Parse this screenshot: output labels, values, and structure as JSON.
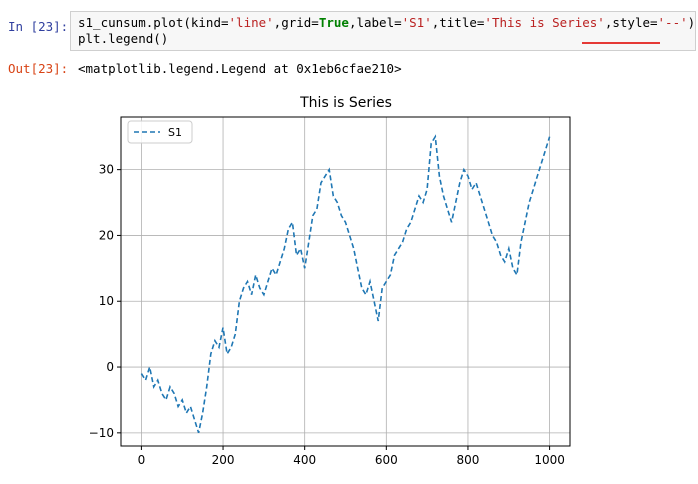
{
  "cells": {
    "input_prompt": "In  [23]:",
    "output_prompt": "Out[23]:",
    "code": {
      "line1_a": "s1_cunsum.plot(kind=",
      "kind": "'line'",
      "grid_a": ",grid=",
      "true_kw": "True",
      "label_a": ",label=",
      "label_val": "'S1'",
      "title_a": ",title=",
      "title_val": "'This is Series'",
      "style_a": ",style=",
      "style_val": "'--'",
      "close": ")",
      "line2": "plt.legend()"
    },
    "output": "<matplotlib.legend.Legend at 0x1eb6cfae210>"
  },
  "colors": {
    "line": "#1f77b4",
    "in_prompt": "#303F9F",
    "out_prompt": "#D84315",
    "string": "#BA2121",
    "keyword": "#008000",
    "underline": "#e53935"
  },
  "chart_data": {
    "type": "line",
    "title": "This is Series",
    "xlabel": "",
    "ylabel": "",
    "xlim": [
      -50,
      1050
    ],
    "ylim": [
      -12,
      38
    ],
    "grid": true,
    "line_style": "dashed",
    "legend_position": "top-left",
    "xticks": [
      0,
      200,
      400,
      600,
      800,
      1000
    ],
    "yticks": [
      -10,
      0,
      10,
      20,
      30
    ],
    "xtick_labels": [
      "0",
      "200",
      "400",
      "600",
      "800",
      "1000"
    ],
    "ytick_labels": [
      "−10",
      "0",
      "10",
      "20",
      "30"
    ],
    "series": [
      {
        "name": "S1",
        "x": [
          0,
          10,
          20,
          30,
          40,
          50,
          60,
          70,
          80,
          90,
          100,
          110,
          120,
          130,
          140,
          150,
          160,
          170,
          180,
          190,
          200,
          210,
          220,
          230,
          240,
          250,
          260,
          270,
          280,
          290,
          300,
          310,
          320,
          330,
          340,
          350,
          360,
          370,
          380,
          390,
          400,
          410,
          420,
          430,
          440,
          450,
          460,
          470,
          480,
          490,
          500,
          510,
          520,
          530,
          540,
          550,
          560,
          570,
          580,
          590,
          600,
          610,
          620,
          630,
          640,
          650,
          660,
          670,
          680,
          690,
          700,
          710,
          720,
          730,
          740,
          750,
          760,
          770,
          780,
          790,
          800,
          810,
          820,
          830,
          840,
          850,
          860,
          870,
          880,
          890,
          900,
          910,
          920,
          930,
          940,
          950,
          960,
          970,
          980,
          990,
          1000
        ],
        "values": [
          -1,
          -2,
          0,
          -3,
          -2,
          -4,
          -5,
          -3,
          -4,
          -6,
          -5,
          -7,
          -6,
          -8,
          -10,
          -7,
          -3,
          2,
          4,
          3,
          6,
          2,
          3,
          5,
          10,
          12,
          13,
          11,
          14,
          12,
          11,
          13,
          15,
          14,
          16,
          18,
          21,
          22,
          17,
          18,
          15,
          19,
          23,
          24,
          28,
          29,
          30,
          26,
          25,
          23,
          22,
          20,
          18,
          15,
          12,
          11,
          13,
          10,
          7,
          12,
          13,
          14,
          17,
          18,
          19,
          21,
          22,
          24,
          26,
          25,
          27,
          34,
          35,
          29,
          26,
          24,
          22,
          25,
          28,
          30,
          29,
          27,
          28,
          26,
          24,
          22,
          20,
          19,
          17,
          16,
          18,
          15,
          14,
          19,
          22,
          25,
          27,
          29,
          31,
          33,
          35
        ]
      }
    ]
  }
}
